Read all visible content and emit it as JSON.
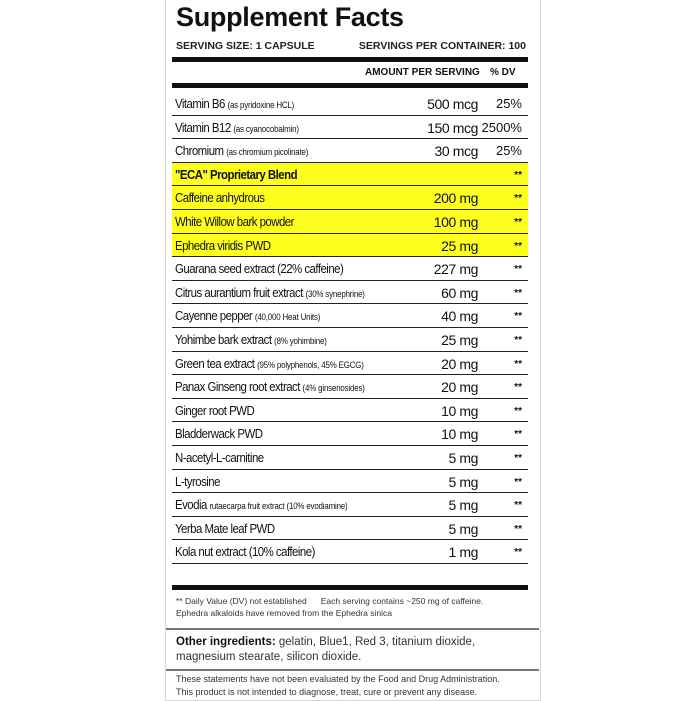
{
  "title": "Supplement Facts",
  "serving_size": "SERVING SIZE: 1 CAPSULE",
  "servings_per_container": "SERVINGS PER CONTAINER: 100",
  "header": {
    "amount": "AMOUNT PER SERVING",
    "dv": "% DV"
  },
  "highlight_color": "#ffff1e",
  "rows": [
    {
      "name": "Vitamin B6",
      "sub": "(as pyridoxine HCL)",
      "amount": "500 mcg",
      "dv": "25%"
    },
    {
      "name": "Vitamin B12",
      "sub": "(as cyanocobalmin)",
      "amount": "150 mcg",
      "dv": "2500%"
    },
    {
      "name": "Chromium",
      "sub": "(as chromium picolinate)",
      "amount": "30 mcg",
      "dv": "25%"
    },
    {
      "name": "\"ECA\" Proprietary Blend",
      "sub": "",
      "amount": "",
      "dv": "**",
      "highlight": true,
      "bold": true
    },
    {
      "name": "Caffeine anhydrous",
      "sub": "",
      "amount": "200 mg",
      "dv": "**",
      "highlight": true
    },
    {
      "name": "White Willow bark powder",
      "sub": "",
      "amount": "100 mg",
      "dv": "**",
      "highlight": true
    },
    {
      "name": "Ephedra viridis PWD",
      "sub": "",
      "amount": "25 mg",
      "dv": "**",
      "highlight": true
    },
    {
      "name": "Guarana seed extract (22% caffeine)",
      "sub": "",
      "amount": "227 mg",
      "dv": "**"
    },
    {
      "name": "Citrus aurantium fruit extract",
      "sub": "(30% synephrine)",
      "amount": "60 mg",
      "dv": "**"
    },
    {
      "name": "Cayenne pepper",
      "sub": "(40,000 Heat Units)",
      "amount": "40 mg",
      "dv": "**"
    },
    {
      "name": "Yohimbe bark extract",
      "sub": "(8% yohimbine)",
      "amount": "25 mg",
      "dv": "**"
    },
    {
      "name": "Green tea extract",
      "sub": "(95% polyphenols, 45% EGCG)",
      "amount": "20 mg",
      "dv": "**"
    },
    {
      "name": "Panax Ginseng root extract",
      "sub": "(4% ginsenosides)",
      "amount": "20 mg",
      "dv": "**"
    },
    {
      "name": "Ginger root PWD",
      "sub": "",
      "amount": "10 mg",
      "dv": "**"
    },
    {
      "name": "Bladderwack PWD",
      "sub": "",
      "amount": "10 mg",
      "dv": "**"
    },
    {
      "name": "N-acetyl-L-carnitine",
      "sub": "",
      "amount": "5 mg",
      "dv": "**"
    },
    {
      "name": "L-tyrosine",
      "sub": "",
      "amount": "5 mg",
      "dv": "**"
    },
    {
      "name": "Evodia",
      "sub": "rutaecarpa fruit extract (10% evodiamine)",
      "amount": "5 mg",
      "dv": "**"
    },
    {
      "name": "Yerba Mate leaf PWD",
      "sub": "",
      "amount": "5 mg",
      "dv": "**"
    },
    {
      "name": "Kola nut extract (10% caffeine)",
      "sub": "",
      "amount": "1 mg",
      "dv": "**"
    }
  ],
  "footnote": {
    "dv_note": "** Daily Value (DV) not established",
    "caffeine_note": "Each serving contains ~250 mg of caffeine.",
    "ephedra_note": "Ephedra alkaloids have removed from the Ephedra sinica"
  },
  "other_ingredients": {
    "label": "Other ingredients:",
    "text": " gelatin, Blue1, Red 3, titanium dioxide, magnesium stearate, silicon dioxide."
  },
  "disclaimer": [
    "These statements have not been evaluated by the Food and Drug Administration.",
    "This product is not intended to diagnose, treat, cure or prevent any disease."
  ]
}
